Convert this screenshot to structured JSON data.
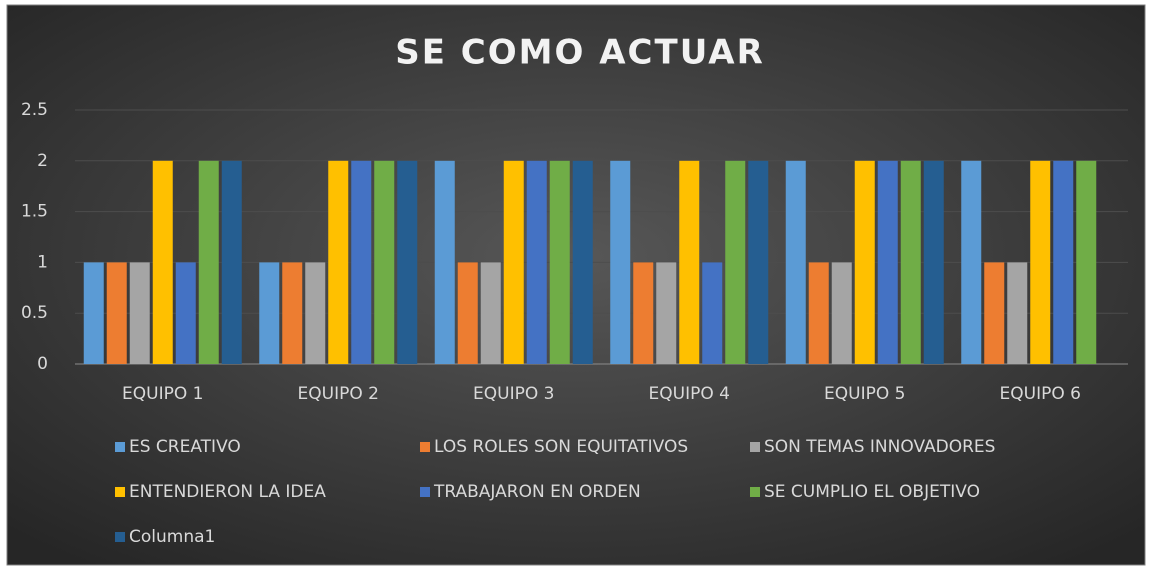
{
  "chart_data": {
    "type": "bar",
    "title": "SE COMO ACTUAR",
    "categories": [
      "EQUIPO 1",
      "EQUIPO 2",
      "EQUIPO 3",
      "EQUIPO 4",
      "EQUIPO 5",
      "EQUIPO 6"
    ],
    "series": [
      {
        "name": "ES CREATIVO",
        "color": "#5b9bd5",
        "values": [
          1,
          1,
          2,
          2,
          2,
          2
        ]
      },
      {
        "name": "LOS ROLES SON EQUITATIVOS",
        "color": "#ed7d31",
        "values": [
          1,
          1,
          1,
          1,
          1,
          1
        ]
      },
      {
        "name": "SON TEMAS INNOVADORES",
        "color": "#a5a5a5",
        "values": [
          1,
          1,
          1,
          1,
          1,
          1
        ]
      },
      {
        "name": "ENTENDIERON LA IDEA",
        "color": "#ffc000",
        "values": [
          2,
          2,
          2,
          2,
          2,
          2
        ]
      },
      {
        "name": "TRABAJARON EN ORDEN",
        "color": "#4472c4",
        "values": [
          1,
          2,
          2,
          1,
          2,
          2
        ]
      },
      {
        "name": "SE CUMPLIO EL OBJETIVO",
        "color": "#70ad47",
        "values": [
          2,
          2,
          2,
          2,
          2,
          2
        ]
      },
      {
        "name": "Columna1",
        "color": "#255e91",
        "values": [
          2,
          2,
          2,
          2,
          2,
          null
        ]
      }
    ],
    "ylim": [
      0,
      2.5
    ],
    "yticks": [
      0,
      0.5,
      1,
      1.5,
      2,
      2.5
    ],
    "grid": true,
    "legend": "bottom"
  }
}
